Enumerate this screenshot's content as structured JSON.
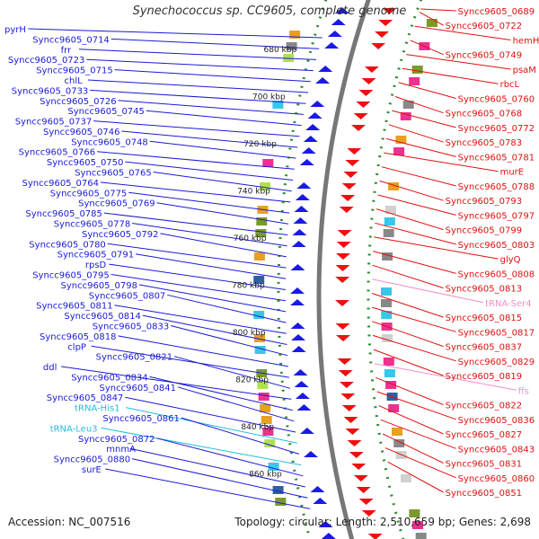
{
  "title": "Synechococcus sp. CC9605, complete genome",
  "footer": {
    "accession": "Accession: NC_007516",
    "topology": "Topology: circular; Length: 2,510,659 bp; Genes: 2,698"
  },
  "colors": {
    "left_label": "#1a1ad6",
    "right_label": "#e01010",
    "trna_label": "#22bde0",
    "rrna_label": "#ee90c8",
    "forward_gene": "#1a1ae6",
    "reverse_gene": "#ee1010",
    "backbone": "#777777",
    "tick_dots": "#2e8b2e"
  },
  "kbp_ticks": [
    "680 kbp",
    "700 kbp",
    "720 kbp",
    "740 kbp",
    "760 kbp",
    "780 kbp",
    "800 kbp",
    "820 kbp",
    "840 kbp",
    "860 kbp"
  ],
  "left_labels": [
    {
      "text": "pyrH",
      "type": "gene"
    },
    {
      "text": "Syncc9605_0714",
      "type": "gene"
    },
    {
      "text": "frr",
      "type": "gene"
    },
    {
      "text": "Syncc9605_0723",
      "type": "gene"
    },
    {
      "text": "Syncc9605_0715",
      "type": "gene"
    },
    {
      "text": "chlL",
      "type": "gene"
    },
    {
      "text": "Syncc9605_0733",
      "type": "gene"
    },
    {
      "text": "Syncc9605_0726",
      "type": "gene"
    },
    {
      "text": "Syncc9605_0745",
      "type": "gene"
    },
    {
      "text": "Syncc9605_0737",
      "type": "gene"
    },
    {
      "text": "Syncc9605_0746",
      "type": "gene"
    },
    {
      "text": "Syncc9605_0748",
      "type": "gene"
    },
    {
      "text": "Syncc9605_0766",
      "type": "gene"
    },
    {
      "text": "Syncc9605_0750",
      "type": "gene"
    },
    {
      "text": "Syncc9605_0765",
      "type": "gene"
    },
    {
      "text": "Syncc9605_0764",
      "type": "gene"
    },
    {
      "text": "Syncc9605_0775",
      "type": "gene"
    },
    {
      "text": "Syncc9605_0769",
      "type": "gene"
    },
    {
      "text": "Syncc9605_0785",
      "type": "gene"
    },
    {
      "text": "Syncc9605_0778",
      "type": "gene"
    },
    {
      "text": "Syncc9605_0792",
      "type": "gene"
    },
    {
      "text": "Syncc9605_0780",
      "type": "gene"
    },
    {
      "text": "Syncc9605_0791",
      "type": "gene"
    },
    {
      "text": "rpsD",
      "type": "gene"
    },
    {
      "text": "Syncc9605_0795",
      "type": "gene"
    },
    {
      "text": "Syncc9605_0798",
      "type": "gene"
    },
    {
      "text": "Syncc9605_0807",
      "type": "gene"
    },
    {
      "text": "Syncc9605_0811",
      "type": "gene"
    },
    {
      "text": "Syncc9605_0814",
      "type": "gene"
    },
    {
      "text": "Syncc9605_0833",
      "type": "gene"
    },
    {
      "text": "Syncc9605_0818",
      "type": "gene"
    },
    {
      "text": "clpP",
      "type": "gene"
    },
    {
      "text": "Syncc9605_0821",
      "type": "gene"
    },
    {
      "text": "ddl",
      "type": "gene"
    },
    {
      "text": "Syncc9605_0834",
      "type": "gene"
    },
    {
      "text": "Syncc9605_0841",
      "type": "gene"
    },
    {
      "text": "Syncc9605_0847",
      "type": "gene"
    },
    {
      "text": "tRNA-His1",
      "type": "trna"
    },
    {
      "text": "Syncc9605_0861",
      "type": "gene"
    },
    {
      "text": "tRNA-Leu3",
      "type": "trna"
    },
    {
      "text": "Syncc9605_0872",
      "type": "gene"
    },
    {
      "text": "mnmA",
      "type": "gene"
    },
    {
      "text": "Syncc9605_0880",
      "type": "gene"
    },
    {
      "text": "surE",
      "type": "gene"
    }
  ],
  "right_labels": [
    {
      "text": "Syncc9605_0689",
      "type": "gene"
    },
    {
      "text": "Syncc9605_0722",
      "type": "gene"
    },
    {
      "text": "hemH",
      "type": "gene"
    },
    {
      "text": "Syncc9605_0749",
      "type": "gene"
    },
    {
      "text": "psaM",
      "type": "gene"
    },
    {
      "text": "rbcL",
      "type": "gene"
    },
    {
      "text": "Syncc9605_0760",
      "type": "gene"
    },
    {
      "text": "Syncc9605_0768",
      "type": "gene"
    },
    {
      "text": "Syncc9605_0772",
      "type": "gene"
    },
    {
      "text": "Syncc9605_0783",
      "type": "gene"
    },
    {
      "text": "Syncc9605_0781",
      "type": "gene"
    },
    {
      "text": "murE",
      "type": "gene"
    },
    {
      "text": "Syncc9605_0788",
      "type": "gene"
    },
    {
      "text": "Syncc9605_0793",
      "type": "gene"
    },
    {
      "text": "Syncc9605_0797",
      "type": "gene"
    },
    {
      "text": "Syncc9605_0799",
      "type": "gene"
    },
    {
      "text": "Syncc9605_0803",
      "type": "gene"
    },
    {
      "text": "glyQ",
      "type": "gene"
    },
    {
      "text": "Syncc9605_0808",
      "type": "gene"
    },
    {
      "text": "Syncc9605_0813",
      "type": "gene"
    },
    {
      "text": "tRNA-Ser4",
      "type": "rrna"
    },
    {
      "text": "Syncc9605_0815",
      "type": "gene"
    },
    {
      "text": "Syncc9605_0817",
      "type": "gene"
    },
    {
      "text": "Syncc9605_0837",
      "type": "gene"
    },
    {
      "text": "Syncc9605_0829",
      "type": "gene"
    },
    {
      "text": "Syncc9605_0819",
      "type": "gene"
    },
    {
      "text": "ffs",
      "type": "rrna"
    },
    {
      "text": "Syncc9605_0822",
      "type": "gene"
    },
    {
      "text": "Syncc9605_0836",
      "type": "gene"
    },
    {
      "text": "Syncc9605_0827",
      "type": "gene"
    },
    {
      "text": "Syncc9605_0843",
      "type": "gene"
    },
    {
      "text": "Syncc9605_0831",
      "type": "gene"
    },
    {
      "text": "Syncc9605_0860",
      "type": "gene"
    },
    {
      "text": "Syncc9605_0851",
      "type": "gene"
    }
  ]
}
